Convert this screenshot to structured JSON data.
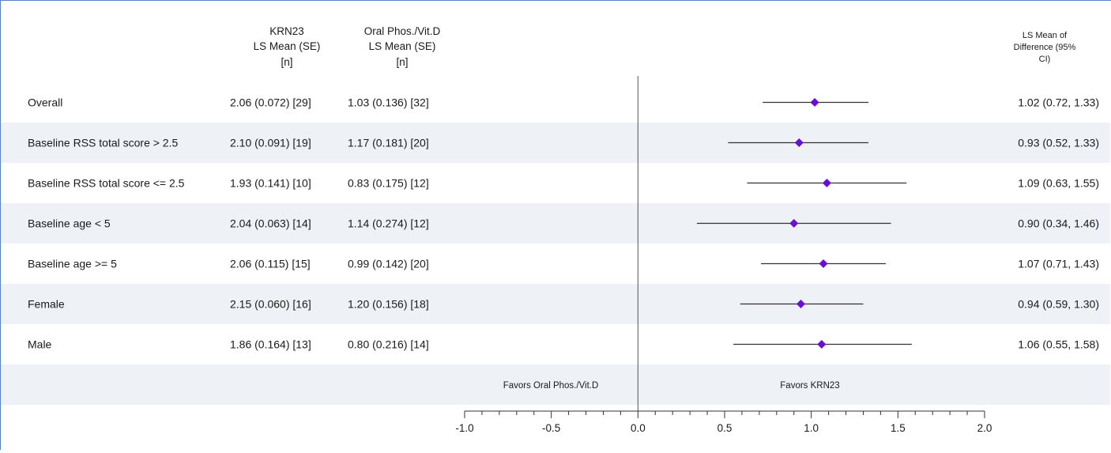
{
  "chart_data": {
    "type": "forest",
    "headers": {
      "col1": [
        "KRN23",
        "LS Mean (SE)",
        "[n]"
      ],
      "col2": [
        "Oral Phos./Vit.D",
        "LS Mean (SE)",
        "[n]"
      ],
      "col3": [
        "LS Mean of",
        "Difference (95%",
        "CI)"
      ]
    },
    "rows": [
      {
        "label": "Overall",
        "krn23": "2.06 (0.072) [29]",
        "oral": "1.03 (0.136) [32]",
        "diff_text": "1.02 (0.72, 1.33)",
        "estimate": 1.02,
        "lower": 0.72,
        "upper": 1.33
      },
      {
        "label": "Baseline RSS total score > 2.5",
        "krn23": "2.10 (0.091) [19]",
        "oral": "1.17 (0.181) [20]",
        "diff_text": "0.93 (0.52, 1.33)",
        "estimate": 0.93,
        "lower": 0.52,
        "upper": 1.33
      },
      {
        "label": "Baseline RSS total score <= 2.5",
        "krn23": "1.93 (0.141) [10]",
        "oral": "0.83 (0.175) [12]",
        "diff_text": "1.09 (0.63, 1.55)",
        "estimate": 1.09,
        "lower": 0.63,
        "upper": 1.55
      },
      {
        "label": "Baseline age < 5",
        "krn23": "2.04 (0.063) [14]",
        "oral": "1.14 (0.274) [12]",
        "diff_text": "0.90 (0.34, 1.46)",
        "estimate": 0.9,
        "lower": 0.34,
        "upper": 1.46
      },
      {
        "label": "Baseline age >= 5",
        "krn23": "2.06 (0.115) [15]",
        "oral": "0.99 (0.142) [20]",
        "diff_text": "1.07 (0.71, 1.43)",
        "estimate": 1.07,
        "lower": 0.71,
        "upper": 1.43
      },
      {
        "label": "Female",
        "krn23": "2.15 (0.060) [16]",
        "oral": "1.20 (0.156) [18]",
        "diff_text": "0.94 (0.59, 1.30)",
        "estimate": 0.94,
        "lower": 0.59,
        "upper": 1.3
      },
      {
        "label": "Male",
        "krn23": "1.86 (0.164) [13]",
        "oral": "0.80 (0.216) [14]",
        "diff_text": "1.06 (0.55, 1.58)",
        "estimate": 1.06,
        "lower": 0.55,
        "upper": 1.58
      }
    ],
    "favors_left": "Favors Oral Phos./Vit.D",
    "favors_right": "Favors KRN23",
    "x_ticks": [
      "-1.0",
      "-0.5",
      "0.0",
      "0.5",
      "1.0",
      "1.5",
      "2.0"
    ],
    "xlim": [
      -1.0,
      2.0
    ],
    "reference_line": 0.0,
    "marker_color": "#6a0dd6",
    "stripe_color": "#eef1f6",
    "line_color": "#333333",
    "frame_color": "#5b7fc4"
  }
}
